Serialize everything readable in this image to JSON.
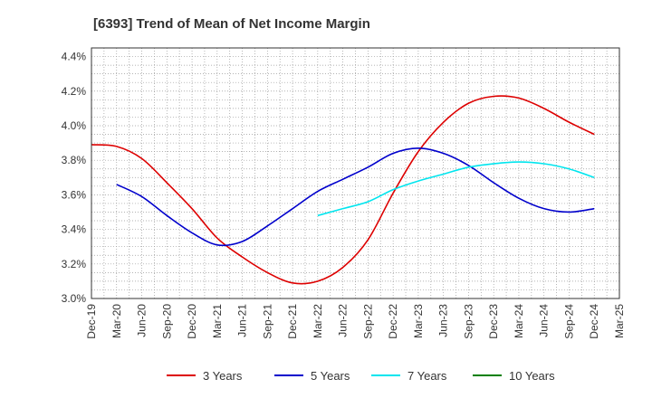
{
  "chart_data": {
    "type": "line",
    "title": "[6393]  Trend of Mean of Net Income Margin",
    "xlabel": "",
    "ylabel": "",
    "categories": [
      "Dec-19",
      "Mar-20",
      "Jun-20",
      "Sep-20",
      "Dec-20",
      "Mar-21",
      "Jun-21",
      "Sep-21",
      "Dec-21",
      "Mar-22",
      "Jun-22",
      "Sep-22",
      "Dec-22",
      "Mar-23",
      "Jun-23",
      "Sep-23",
      "Dec-23",
      "Mar-24",
      "Jun-24",
      "Sep-24",
      "Dec-24",
      "Mar-25"
    ],
    "yticks": [
      "3.0%",
      "3.2%",
      "3.4%",
      "3.6%",
      "3.8%",
      "4.0%",
      "4.2%",
      "4.4%"
    ],
    "ylim": [
      3.0,
      4.45
    ],
    "grid": true,
    "legend_position": "bottom",
    "series": [
      {
        "name": "3 Years",
        "color": "#dd0000",
        "values": [
          3.89,
          3.88,
          3.81,
          3.67,
          3.52,
          3.35,
          3.24,
          3.15,
          3.09,
          3.1,
          3.18,
          3.34,
          3.61,
          3.85,
          4.02,
          4.13,
          4.17,
          4.16,
          4.1,
          4.02,
          3.95,
          null
        ]
      },
      {
        "name": "5 Years",
        "color": "#0000cc",
        "values": [
          null,
          3.66,
          3.59,
          3.48,
          3.38,
          3.31,
          3.33,
          3.42,
          3.52,
          3.62,
          3.69,
          3.76,
          3.84,
          3.87,
          3.84,
          3.77,
          3.67,
          3.58,
          3.52,
          3.5,
          3.52,
          null
        ]
      },
      {
        "name": "7 Years",
        "color": "#00e5ee",
        "values": [
          null,
          null,
          null,
          null,
          null,
          null,
          null,
          null,
          null,
          3.48,
          3.52,
          3.56,
          3.63,
          3.68,
          3.72,
          3.76,
          3.78,
          3.79,
          3.78,
          3.75,
          3.7,
          null
        ]
      },
      {
        "name": "10 Years",
        "color": "#008000",
        "values": [
          null,
          null,
          null,
          null,
          null,
          null,
          null,
          null,
          null,
          null,
          null,
          null,
          null,
          null,
          null,
          null,
          null,
          null,
          null,
          null,
          null,
          null
        ]
      }
    ]
  }
}
